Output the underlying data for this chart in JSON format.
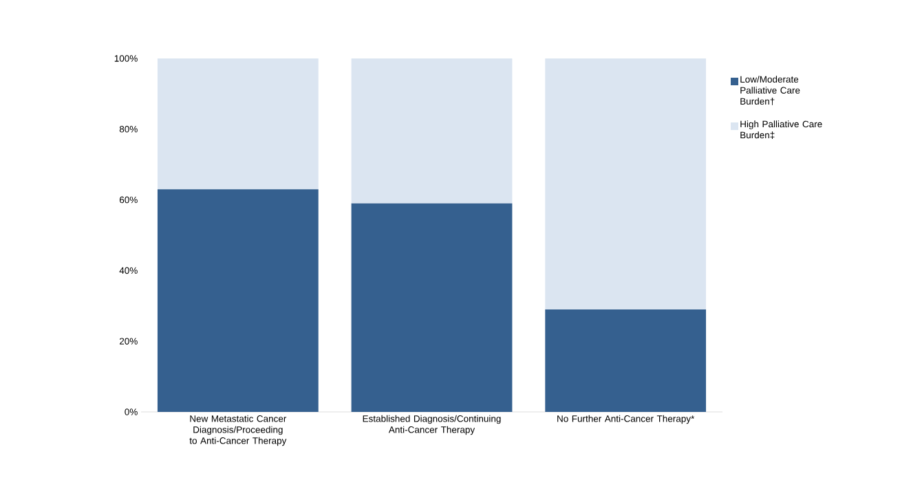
{
  "chart_data": {
    "type": "bar",
    "stacked": true,
    "categories": [
      "New Metastatic Cancer Diagnosis/Proceeding to Anti-Cancer Therapy",
      "Established Diagnosis/Continuing Anti-Cancer Therapy",
      "No Further Anti-Cancer Therapy*"
    ],
    "series": [
      {
        "name": "Low/Moderate Palliative Care Burden†",
        "color": "#35608f",
        "values": [
          63,
          59,
          29
        ]
      },
      {
        "name": "High Palliative Care Burden‡",
        "color": "#dbe5f1",
        "values": [
          37,
          41,
          71
        ]
      }
    ],
    "ylim": [
      0,
      100
    ],
    "yticks": [
      {
        "value": 0,
        "label": "0%"
      },
      {
        "value": 20,
        "label": "20%"
      },
      {
        "value": 40,
        "label": "40%"
      },
      {
        "value": 60,
        "label": "60%"
      },
      {
        "value": 80,
        "label": "80%"
      },
      {
        "value": 100,
        "label": "100%"
      }
    ],
    "grid": false,
    "legend": "right"
  }
}
